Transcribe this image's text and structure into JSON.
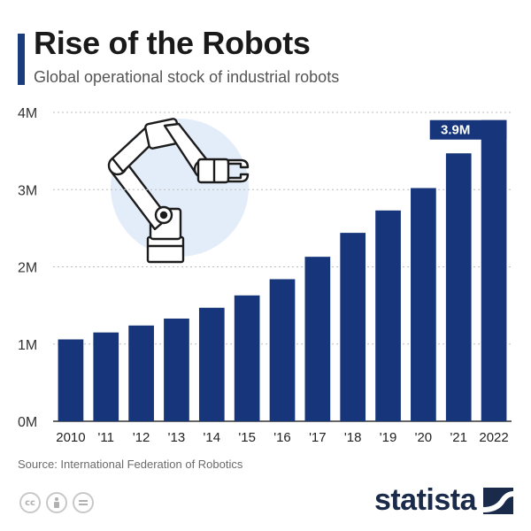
{
  "header": {
    "title": "Rise of the Robots",
    "subtitle": "Global operational stock of industrial robots"
  },
  "chart_data": {
    "type": "bar",
    "title": "Rise of the Robots",
    "subtitle": "Global operational stock of industrial robots",
    "categories": [
      "2010",
      "'11",
      "'12",
      "'13",
      "'14",
      "'15",
      "'16",
      "'17",
      "'18",
      "'19",
      "'20",
      "'21",
      "2022"
    ],
    "series": [
      {
        "values": [
          1.06,
          1.15,
          1.24,
          1.33,
          1.47,
          1.63,
          1.84,
          2.13,
          2.44,
          2.73,
          3.02,
          3.47,
          3.9
        ]
      }
    ],
    "yticks": [
      "0M",
      "1M",
      "2M",
      "3M",
      "4M"
    ],
    "ylim": [
      0,
      4
    ],
    "grid": true,
    "highlight": {
      "index": 12,
      "label": "3.9M"
    },
    "bar_color": "#16357a"
  },
  "footer": {
    "source": "Source: International Federation of Robotics",
    "cc_icons": [
      "cc-icon",
      "by-icon",
      "nd-icon"
    ],
    "brand": "statista",
    "brand_icon": "statista-logo-icon"
  }
}
